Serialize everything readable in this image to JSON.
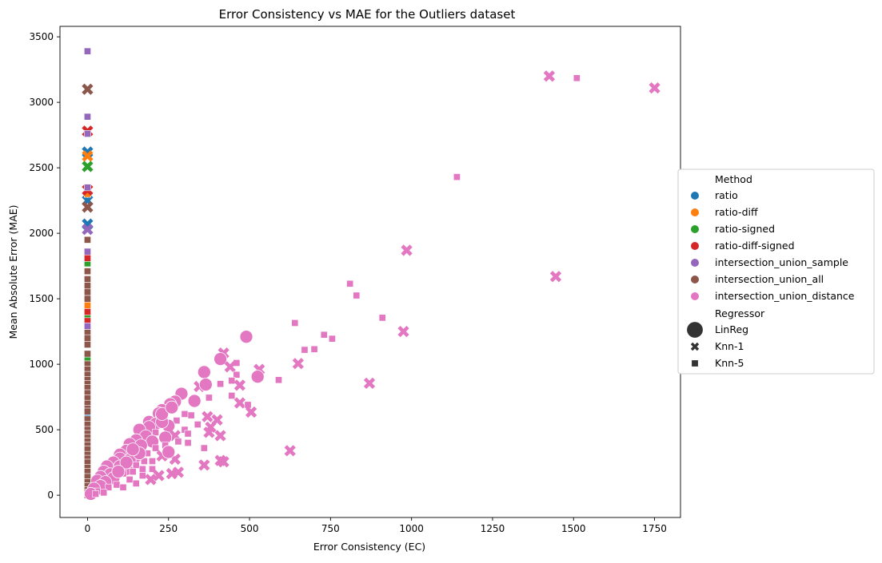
{
  "chart_data": {
    "type": "scatter",
    "title": "Error Consistency vs MAE for the Outliers dataset",
    "xlabel": "Error Consistency (EC)",
    "ylabel": "Mean Absolute Error (MAE)",
    "xlim": [
      -85,
      1830
    ],
    "ylim": [
      -170,
      3580
    ],
    "xticks": [
      0,
      250,
      500,
      750,
      1000,
      1250,
      1500,
      1750
    ],
    "yticks": [
      0,
      500,
      1000,
      1500,
      2000,
      2500,
      3000,
      3500
    ],
    "grid": false,
    "legend": {
      "placement": "center-right (outside)",
      "hue_title": "Method",
      "style_title": "Regressor",
      "methods": [
        {
          "name": "ratio",
          "color": "#1f77b4"
        },
        {
          "name": "ratio-diff",
          "color": "#ff7f0e"
        },
        {
          "name": "ratio-signed",
          "color": "#2ca02c"
        },
        {
          "name": "ratio-diff-signed",
          "color": "#d62728"
        },
        {
          "name": "intersection_union_sample",
          "color": "#9467bd"
        },
        {
          "name": "intersection_union_all",
          "color": "#8c564b"
        },
        {
          "name": "intersection_union_distance",
          "color": "#e377c2"
        }
      ],
      "regressors": [
        {
          "name": "LinReg",
          "marker": "circle"
        },
        {
          "name": "Knn-1",
          "marker": "x"
        },
        {
          "name": "Knn-5",
          "marker": "square"
        }
      ]
    },
    "series": [
      {
        "method": "ratio",
        "points": [
          [
            0,
            2620,
            "x"
          ],
          [
            0,
            2330,
            "square"
          ],
          [
            0,
            2250,
            "x"
          ],
          [
            0,
            2070,
            "x"
          ],
          [
            0,
            1450,
            "square"
          ],
          [
            0,
            1250,
            "square"
          ],
          [
            0,
            900,
            "square"
          ],
          [
            0,
            600,
            "square"
          ],
          [
            0,
            300,
            "square"
          ]
        ]
      },
      {
        "method": "ratio-diff",
        "points": [
          [
            0,
            2590,
            "x"
          ],
          [
            0,
            2300,
            "square"
          ],
          [
            0,
            1450,
            "square"
          ],
          [
            0,
            1380,
            "square"
          ],
          [
            0,
            1300,
            "square"
          ],
          [
            0,
            1150,
            "square"
          ],
          [
            0,
            950,
            "square"
          ]
        ]
      },
      {
        "method": "ratio-signed",
        "points": [
          [
            0,
            2510,
            "x"
          ],
          [
            0,
            1770,
            "square"
          ],
          [
            0,
            1350,
            "square"
          ],
          [
            0,
            1050,
            "square"
          ],
          [
            0,
            700,
            "square"
          ],
          [
            0,
            400,
            "square"
          ]
        ]
      },
      {
        "method": "ratio-diff-signed",
        "points": [
          [
            0,
            2780,
            "x"
          ],
          [
            0,
            2330,
            "x"
          ],
          [
            0,
            1810,
            "square"
          ],
          [
            0,
            1400,
            "square"
          ],
          [
            0,
            1330,
            "square"
          ],
          [
            0,
            800,
            "square"
          ],
          [
            0,
            550,
            "square"
          ],
          [
            0,
            250,
            "square"
          ]
        ]
      },
      {
        "method": "intersection_union_sample",
        "points": [
          [
            0,
            3390,
            "square"
          ],
          [
            0,
            2890,
            "square"
          ],
          [
            0,
            2760,
            "square"
          ],
          [
            0,
            2350,
            "square"
          ],
          [
            0,
            2030,
            "x"
          ],
          [
            0,
            1860,
            "square"
          ],
          [
            0,
            1290,
            "square"
          ],
          [
            0,
            750,
            "square"
          ],
          [
            0,
            200,
            "square"
          ]
        ]
      },
      {
        "method": "intersection_union_all",
        "points": [
          [
            0,
            3100,
            "x"
          ],
          [
            0,
            2200,
            "x"
          ],
          [
            0,
            1950,
            "square"
          ],
          [
            0,
            1710,
            "square"
          ],
          [
            0,
            1650,
            "square"
          ],
          [
            0,
            1600,
            "square"
          ],
          [
            0,
            1550,
            "square"
          ],
          [
            0,
            1500,
            "square"
          ],
          [
            0,
            1240,
            "square"
          ],
          [
            0,
            1200,
            "square"
          ],
          [
            0,
            1150,
            "square"
          ],
          [
            0,
            1080,
            "square"
          ],
          [
            0,
            1000,
            "square"
          ],
          [
            0,
            960,
            "square"
          ],
          [
            0,
            920,
            "square"
          ],
          [
            0,
            880,
            "square"
          ],
          [
            0,
            850,
            "square"
          ],
          [
            0,
            820,
            "square"
          ],
          [
            0,
            780,
            "square"
          ],
          [
            0,
            740,
            "square"
          ],
          [
            0,
            700,
            "square"
          ],
          [
            0,
            660,
            "square"
          ],
          [
            0,
            640,
            "square"
          ],
          [
            0,
            580,
            "square"
          ],
          [
            0,
            540,
            "square"
          ],
          [
            0,
            500,
            "square"
          ],
          [
            0,
            470,
            "square"
          ],
          [
            0,
            440,
            "square"
          ],
          [
            0,
            410,
            "square"
          ],
          [
            0,
            380,
            "square"
          ],
          [
            0,
            350,
            "square"
          ],
          [
            0,
            310,
            "square"
          ],
          [
            0,
            280,
            "square"
          ],
          [
            0,
            250,
            "square"
          ],
          [
            0,
            210,
            "square"
          ],
          [
            0,
            180,
            "square"
          ],
          [
            0,
            140,
            "square"
          ],
          [
            0,
            100,
            "square"
          ],
          [
            0,
            70,
            "square"
          ],
          [
            0,
            40,
            "square"
          ],
          [
            0,
            20,
            "square"
          ],
          [
            0,
            0,
            "square"
          ]
        ]
      },
      {
        "method": "intersection_union_distance",
        "points": [
          [
            1425,
            3200,
            "x"
          ],
          [
            1510,
            3185,
            "square"
          ],
          [
            1750,
            3110,
            "x"
          ],
          [
            1140,
            2430,
            "square"
          ],
          [
            985,
            1870,
            "x"
          ],
          [
            1445,
            1670,
            "x"
          ],
          [
            810,
            1615,
            "square"
          ],
          [
            830,
            1525,
            "square"
          ],
          [
            910,
            1355,
            "square"
          ],
          [
            640,
            1315,
            "square"
          ],
          [
            730,
            1225,
            "square"
          ],
          [
            975,
            1250,
            "x"
          ],
          [
            755,
            1195,
            "square"
          ],
          [
            490,
            1210,
            "circle"
          ],
          [
            700,
            1115,
            "square"
          ],
          [
            670,
            1110,
            "square"
          ],
          [
            420,
            1085,
            "x"
          ],
          [
            410,
            1040,
            "circle"
          ],
          [
            460,
            1010,
            "square"
          ],
          [
            650,
            1005,
            "x"
          ],
          [
            440,
            980,
            "x"
          ],
          [
            530,
            960,
            "x"
          ],
          [
            360,
            940,
            "circle"
          ],
          [
            460,
            920,
            "square"
          ],
          [
            525,
            905,
            "circle"
          ],
          [
            590,
            880,
            "square"
          ],
          [
            410,
            850,
            "square"
          ],
          [
            445,
            875,
            "square"
          ],
          [
            870,
            855,
            "x"
          ],
          [
            345,
            830,
            "x"
          ],
          [
            470,
            840,
            "x"
          ],
          [
            365,
            845,
            "circle"
          ],
          [
            290,
            775,
            "circle"
          ],
          [
            445,
            760,
            "square"
          ],
          [
            375,
            745,
            "square"
          ],
          [
            470,
            705,
            "x"
          ],
          [
            330,
            720,
            "circle"
          ],
          [
            270,
            715,
            "circle"
          ],
          [
            255,
            695,
            "circle"
          ],
          [
            495,
            690,
            "square"
          ],
          [
            505,
            635,
            "x"
          ],
          [
            230,
            650,
            "circle"
          ],
          [
            220,
            625,
            "circle"
          ],
          [
            300,
            620,
            "square"
          ],
          [
            400,
            575,
            "x"
          ],
          [
            230,
            600,
            "circle"
          ],
          [
            275,
            570,
            "square"
          ],
          [
            370,
            600,
            "x"
          ],
          [
            190,
            560,
            "circle"
          ],
          [
            210,
            545,
            "circle"
          ],
          [
            340,
            540,
            "square"
          ],
          [
            250,
            530,
            "circle"
          ],
          [
            190,
            520,
            "circle"
          ],
          [
            160,
            500,
            "circle"
          ],
          [
            300,
            500,
            "square"
          ],
          [
            380,
            520,
            "x"
          ],
          [
            375,
            480,
            "x"
          ],
          [
            210,
            480,
            "square"
          ],
          [
            180,
            450,
            "circle"
          ],
          [
            410,
            455,
            "x"
          ],
          [
            270,
            455,
            "x"
          ],
          [
            240,
            440,
            "circle"
          ],
          [
            150,
            420,
            "circle"
          ],
          [
            310,
            400,
            "square"
          ],
          [
            130,
            390,
            "circle"
          ],
          [
            200,
            410,
            "circle"
          ],
          [
            165,
            380,
            "circle"
          ],
          [
            210,
            360,
            "square"
          ],
          [
            625,
            340,
            "x"
          ],
          [
            360,
            360,
            "square"
          ],
          [
            120,
            340,
            "circle"
          ],
          [
            100,
            310,
            "circle"
          ],
          [
            150,
            300,
            "circle"
          ],
          [
            185,
            320,
            "square"
          ],
          [
            230,
            300,
            "x"
          ],
          [
            100,
            280,
            "circle"
          ],
          [
            130,
            270,
            "circle"
          ],
          [
            175,
            260,
            "square"
          ],
          [
            270,
            275,
            "x"
          ],
          [
            410,
            265,
            "x"
          ],
          [
            80,
            250,
            "circle"
          ],
          [
            60,
            220,
            "circle"
          ],
          [
            100,
            220,
            "circle"
          ],
          [
            150,
            230,
            "square"
          ],
          [
            120,
            200,
            "circle"
          ],
          [
            200,
            200,
            "square"
          ],
          [
            360,
            230,
            "x"
          ],
          [
            420,
            255,
            "x"
          ],
          [
            50,
            180,
            "circle"
          ],
          [
            70,
            160,
            "circle"
          ],
          [
            110,
            165,
            "square"
          ],
          [
            170,
            150,
            "square"
          ],
          [
            280,
            175,
            "x"
          ],
          [
            260,
            165,
            "x"
          ],
          [
            40,
            140,
            "circle"
          ],
          [
            80,
            130,
            "circle"
          ],
          [
            130,
            120,
            "square"
          ],
          [
            195,
            120,
            "x"
          ],
          [
            220,
            150,
            "x"
          ],
          [
            30,
            110,
            "circle"
          ],
          [
            55,
            100,
            "circle"
          ],
          [
            90,
            80,
            "square"
          ],
          [
            150,
            90,
            "square"
          ],
          [
            40,
            70,
            "circle"
          ],
          [
            65,
            60,
            "square"
          ],
          [
            110,
            60,
            "square"
          ],
          [
            20,
            50,
            "circle"
          ],
          [
            30,
            30,
            "square"
          ],
          [
            50,
            20,
            "square"
          ],
          [
            10,
            10,
            "circle"
          ],
          [
            25,
            10,
            "square"
          ],
          [
            160,
            320,
            "circle"
          ],
          [
            140,
            350,
            "circle"
          ],
          [
            230,
            560,
            "circle"
          ],
          [
            320,
            610,
            "square"
          ],
          [
            280,
            410,
            "square"
          ],
          [
            240,
            380,
            "square"
          ],
          [
            200,
            260,
            "square"
          ],
          [
            170,
            200,
            "square"
          ],
          [
            250,
            330,
            "circle"
          ],
          [
            310,
            470,
            "square"
          ],
          [
            230,
            620,
            "circle"
          ],
          [
            260,
            670,
            "circle"
          ],
          [
            120,
            250,
            "circle"
          ],
          [
            95,
            180,
            "circle"
          ],
          [
            140,
            180,
            "square"
          ]
        ]
      }
    ]
  }
}
